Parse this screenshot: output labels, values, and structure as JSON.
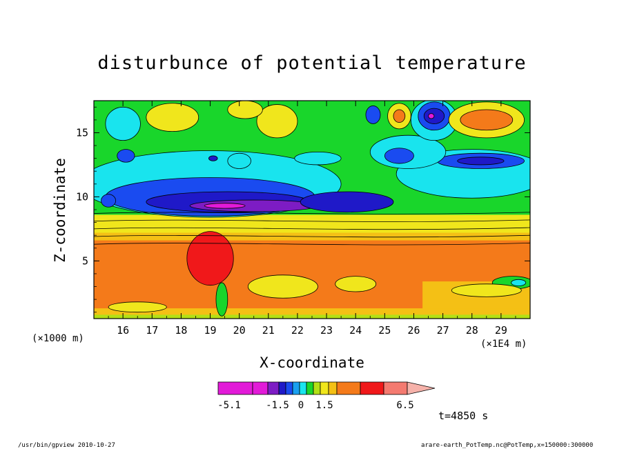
{
  "chart_data": {
    "type": "contour",
    "title": "disturbunce of potential temperature",
    "xlabel": "X-coordinate",
    "ylabel": "Z-coordinate",
    "x_unit_left": "(×1000 m)",
    "x_unit_right": "(×1E4 m)",
    "xlim": [
      15,
      30
    ],
    "ylim": [
      0.5,
      17.5
    ],
    "x_ticks": [
      "16",
      "17",
      "18",
      "19",
      "20",
      "21",
      "22",
      "23",
      "24",
      "25",
      "26",
      "27",
      "28",
      "29"
    ],
    "y_ticks": [
      "5",
      "10",
      "15"
    ],
    "color_levels": [
      {
        "min": null,
        "max": -5.1,
        "color": "#e21ad8"
      },
      {
        "min": -5.1,
        "max": -3.3,
        "color": "#e21ad8"
      },
      {
        "min": -3.3,
        "max": -2.4,
        "color": "#7d1cc4"
      },
      {
        "min": -2.4,
        "max": -1.5,
        "color": "#1f19c8"
      },
      {
        "min": -1.5,
        "max": -1.0,
        "color": "#1a4bf0"
      },
      {
        "min": -1.0,
        "max": -0.5,
        "color": "#1aa0f0"
      },
      {
        "min": -0.5,
        "max": 0.0,
        "color": "#19e4ee"
      },
      {
        "min": 0.0,
        "max": 0.5,
        "color": "#19d62b"
      },
      {
        "min": 0.5,
        "max": 1.0,
        "color": "#b3e016"
      },
      {
        "min": 1.0,
        "max": 1.5,
        "color": "#f0e61c"
      },
      {
        "min": 1.5,
        "max": 2.0,
        "color": "#f4c015"
      },
      {
        "min": 2.0,
        "max": 3.5,
        "color": "#f47a1a"
      },
      {
        "min": 3.5,
        "max": 5.0,
        "color": "#f0181a"
      },
      {
        "min": 5.0,
        "max": 6.5,
        "color": "#f47a70"
      },
      {
        "min": 6.5,
        "max": null,
        "color": "#f6b2aa"
      }
    ],
    "colorbar_tick_labels": [
      "-5.1",
      "-1.5",
      "0",
      "1.5",
      "6.5"
    ],
    "annotation": "t=4850 s",
    "field_regions": [
      {
        "level": "cyan",
        "color": "#19e4ee",
        "cx": 19.0,
        "cy": 11.0,
        "rx": 4.5,
        "ry": 2.6
      },
      {
        "level": "blue",
        "color": "#1a4bf0",
        "cx": 19.0,
        "cy": 10.0,
        "rx": 3.6,
        "ry": 1.5
      },
      {
        "level": "dark-blue",
        "color": "#1f19c8",
        "cx": 19.6,
        "cy": 9.6,
        "rx": 2.8,
        "ry": 0.8
      },
      {
        "level": "purple",
        "color": "#7d1cc4",
        "cx": 20.5,
        "cy": 9.3,
        "rx": 2.2,
        "ry": 0.45
      },
      {
        "level": "magenta",
        "color": "#e21ad8",
        "cx": 19.5,
        "cy": 9.3,
        "rx": 0.7,
        "ry": 0.2
      },
      {
        "level": "dark-blue",
        "color": "#1f19c8",
        "cx": 23.7,
        "cy": 9.6,
        "rx": 1.6,
        "ry": 0.8
      },
      {
        "level": "cyan",
        "color": "#19e4ee",
        "cx": 28.0,
        "cy": 11.8,
        "rx": 2.6,
        "ry": 1.9
      },
      {
        "level": "blue",
        "color": "#1a4bf0",
        "cx": 28.3,
        "cy": 12.8,
        "rx": 1.5,
        "ry": 0.6
      },
      {
        "level": "dark-blue",
        "color": "#1f19c8",
        "cx": 28.3,
        "cy": 12.8,
        "rx": 0.8,
        "ry": 0.3
      },
      {
        "level": "cyan",
        "color": "#19e4ee",
        "cx": 25.8,
        "cy": 13.5,
        "rx": 1.3,
        "ry": 1.3
      },
      {
        "level": "blue",
        "color": "#1a4bf0",
        "cx": 25.5,
        "cy": 13.2,
        "rx": 0.5,
        "ry": 0.6
      },
      {
        "level": "cyan",
        "color": "#19e4ee",
        "cx": 26.7,
        "cy": 16.0,
        "rx": 0.8,
        "ry": 1.6
      },
      {
        "level": "blue",
        "color": "#1a4bf0",
        "cx": 26.7,
        "cy": 16.3,
        "rx": 0.55,
        "ry": 1.1
      },
      {
        "level": "dark-blue",
        "color": "#1f19c8",
        "cx": 26.7,
        "cy": 16.3,
        "rx": 0.35,
        "ry": 0.6
      },
      {
        "level": "magenta",
        "color": "#e21ad8",
        "cx": 26.6,
        "cy": 16.3,
        "rx": 0.1,
        "ry": 0.2
      },
      {
        "level": "blue",
        "color": "#1a4bf0",
        "cx": 24.6,
        "cy": 16.4,
        "rx": 0.25,
        "ry": 0.7
      },
      {
        "level": "yellow",
        "color": "#f0e61c",
        "cx": 25.5,
        "cy": 16.3,
        "rx": 0.4,
        "ry": 1.0
      },
      {
        "level": "orange",
        "color": "#f47a1a",
        "cx": 25.5,
        "cy": 16.3,
        "rx": 0.2,
        "ry": 0.5
      },
      {
        "level": "yellow",
        "color": "#f0e61c",
        "cx": 28.5,
        "cy": 16.0,
        "rx": 1.3,
        "ry": 1.4
      },
      {
        "level": "orange",
        "color": "#f47a1a",
        "cx": 28.5,
        "cy": 16.0,
        "rx": 0.9,
        "ry": 0.8
      },
      {
        "level": "cyan",
        "color": "#19e4ee",
        "cx": 16.0,
        "cy": 15.7,
        "rx": 0.6,
        "ry": 1.3
      },
      {
        "level": "blue",
        "color": "#1a4bf0",
        "cx": 16.1,
        "cy": 13.2,
        "rx": 0.3,
        "ry": 0.5
      },
      {
        "level": "blue",
        "color": "#1a4bf0",
        "cx": 15.5,
        "cy": 9.7,
        "rx": 0.25,
        "ry": 0.5
      },
      {
        "level": "cyan",
        "color": "#19e4ee",
        "cx": 20.0,
        "cy": 12.8,
        "rx": 0.4,
        "ry": 0.6
      },
      {
        "level": "dark-blue",
        "color": "#1f19c8",
        "cx": 19.1,
        "cy": 13.0,
        "rx": 0.15,
        "ry": 0.2
      },
      {
        "level": "cyan",
        "color": "#19e4ee",
        "cx": 22.7,
        "cy": 13.0,
        "rx": 0.8,
        "ry": 0.5
      },
      {
        "level": "yellow",
        "color": "#f0e61c",
        "cx": 21.3,
        "cy": 15.9,
        "rx": 0.7,
        "ry": 1.3
      },
      {
        "level": "yellow",
        "color": "#f0e61c",
        "cx": 17.7,
        "cy": 16.2,
        "rx": 0.9,
        "ry": 1.1
      },
      {
        "level": "yellow",
        "color": "#f0e61c",
        "cx": 20.2,
        "cy": 16.8,
        "rx": 0.6,
        "ry": 0.7
      },
      {
        "level": "red",
        "color": "#f0181a",
        "cx": 19.0,
        "cy": 5.2,
        "rx": 0.8,
        "ry": 2.1
      },
      {
        "level": "yellow",
        "color": "#f0e61c",
        "cx": 21.5,
        "cy": 3.0,
        "rx": 1.2,
        "ry": 0.9
      },
      {
        "level": "yellow",
        "color": "#f0e61c",
        "cx": 24.0,
        "cy": 3.2,
        "rx": 0.7,
        "ry": 0.6
      },
      {
        "level": "yellow",
        "color": "#f0e61c",
        "cx": 16.5,
        "cy": 1.4,
        "rx": 1.0,
        "ry": 0.4
      },
      {
        "level": "green",
        "color": "#19d62b",
        "cx": 29.4,
        "cy": 3.3,
        "rx": 0.7,
        "ry": 0.5
      },
      {
        "level": "cyan",
        "color": "#19e4ee",
        "cx": 29.6,
        "cy": 3.3,
        "rx": 0.25,
        "ry": 0.25
      },
      {
        "level": "yellow",
        "color": "#f0e61c",
        "cx": 28.5,
        "cy": 2.7,
        "rx": 1.2,
        "ry": 0.5
      },
      {
        "level": "green",
        "color": "#19d62b",
        "cx": 19.4,
        "cy": 2.0,
        "rx": 0.2,
        "ry": 1.3
      }
    ]
  },
  "footer": {
    "left": "/usr/bin/gpview  2010-10-27",
    "right": "arare-earth_PotTemp.nc@PotTemp,x=150000:300000"
  }
}
